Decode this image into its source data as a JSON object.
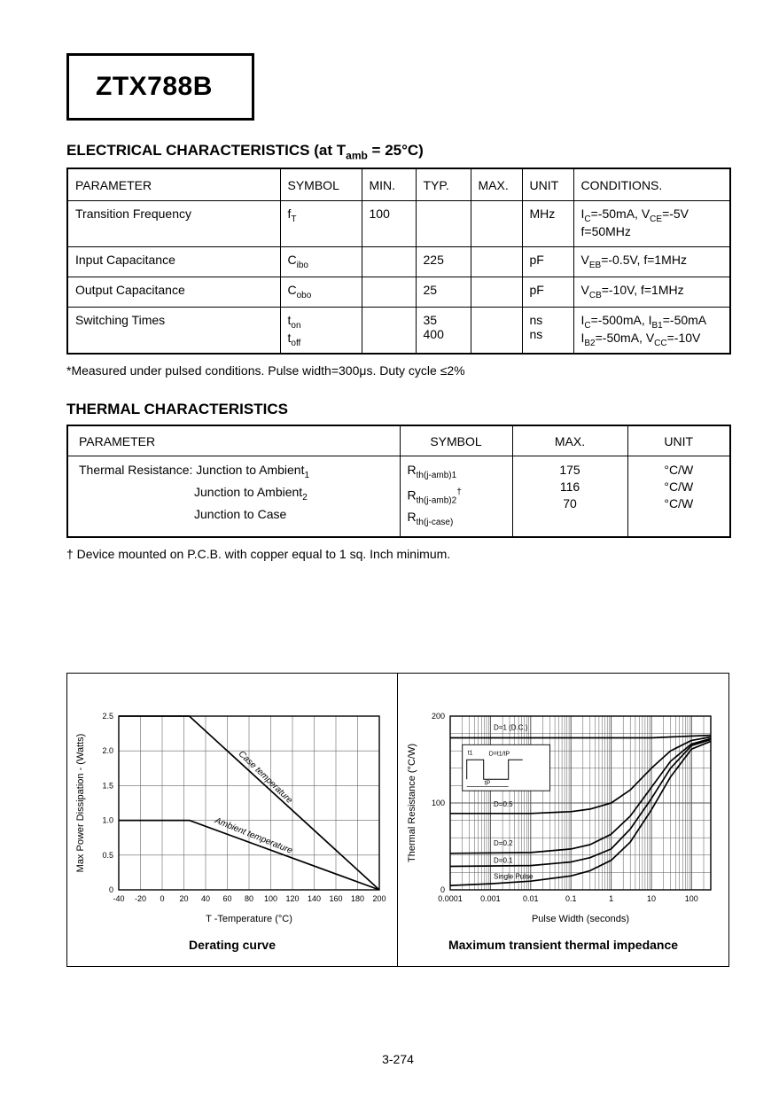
{
  "page": {
    "part_number": "ZTX788B",
    "page_number": "3-274"
  },
  "electrical": {
    "heading": "ELECTRICAL CHARACTERISTICS (at T~amb~ = 25°C)",
    "headers": [
      "PARAMETER",
      "SYMBOL",
      "MIN.",
      "TYP.",
      "MAX.",
      "UNIT",
      "CONDITIONS."
    ],
    "rows": [
      {
        "parameter": "Transition Frequency",
        "symbol": "f~T~",
        "min": "100",
        "typ": "",
        "max": "",
        "unit": "MHz",
        "conditions": "I~C~=-50mA, V~CE~=-5V\nf=50MHz"
      },
      {
        "parameter": "Input Capacitance",
        "symbol": "C~ibo~",
        "min": "",
        "typ": "225",
        "max": "",
        "unit": "pF",
        "conditions": "V~EB~=-0.5V, f=1MHz"
      },
      {
        "parameter": "Output Capacitance",
        "symbol": "C~obo~",
        "min": "",
        "typ": "25",
        "max": "",
        "unit": "pF",
        "conditions": "V~CB~=-10V,  f=1MHz"
      },
      {
        "parameter": "Switching Times",
        "symbol": "t~on~\nt~off~",
        "min": "",
        "typ": "35\n400",
        "max": "",
        "unit": "ns\nns",
        "conditions": "I~C~=-500mA, I~B1~=-50mA\nI~B2~=-50mA, V~CC~=-10V"
      }
    ],
    "footnote": "*Measured under pulsed conditions. Pulse width=300μs. Duty cycle ≤2%"
  },
  "thermal": {
    "heading": "THERMAL CHARACTERISTICS",
    "headers": [
      "PARAMETER",
      "SYMBOL",
      "MAX.",
      "UNIT"
    ],
    "row": {
      "parameter_lead": "Thermal Resistance:",
      "parameter_lines": [
        "Junction to Ambient~1~",
        "Junction to Ambient~2~",
        "Junction to Case"
      ],
      "symbol_lines": [
        "R~th(j-amb)1~",
        "R~th(j-amb)2~^†^",
        "R~th(j-case)~"
      ],
      "max_lines": [
        "175",
        "116",
        "70"
      ],
      "unit_lines": [
        "°C/W",
        "°C/W",
        "°C/W"
      ]
    },
    "footnote": "† Device mounted on P.C.B. with copper equal to 1 sq. Inch minimum."
  },
  "chart_data": [
    {
      "type": "line",
      "title": "Derating curve",
      "xlabel": "T -Temperature (°C)",
      "ylabel": "Max Power Dissipation -  (Watts)",
      "xscale": "linear",
      "xlim": [
        -40,
        200
      ],
      "ylim": [
        0,
        2.5
      ],
      "xticks": [
        -40,
        -20,
        0,
        20,
        40,
        60,
        80,
        100,
        120,
        140,
        160,
        180,
        200
      ],
      "xtick_labels": [
        "-40",
        "-20",
        "0",
        "20",
        "40",
        "60",
        "80",
        "100",
        "120",
        "140",
        "160",
        "180",
        "200"
      ],
      "yticks": [
        0,
        0.5,
        1,
        1.5,
        2,
        2.5
      ],
      "ytick_labels": [
        "0",
        "0.5",
        "1.0",
        "1.5",
        "2.0",
        "2.5"
      ],
      "grid": true,
      "series": [
        {
          "name": "Case temperature",
          "points": [
            [
              -40,
              2.5
            ],
            [
              25,
              2.5
            ],
            [
              200,
              0
            ]
          ],
          "label_at": [
            70,
            1.95
          ],
          "label_angle": 44,
          "label_italic": true,
          "label_size": 10
        },
        {
          "name": "Ambient temperature",
          "points": [
            [
              -40,
              1.0
            ],
            [
              25,
              1.0
            ],
            [
              200,
              0
            ]
          ],
          "label_at": [
            48,
            0.97
          ],
          "label_angle": 22,
          "label_italic": true,
          "label_size": 10
        }
      ]
    },
    {
      "type": "line",
      "title": "Maximum transient thermal impedance",
      "xlabel": "Pulse Width (seconds)",
      "ylabel": "Thermal Resistance (°C/W)",
      "xscale": "log",
      "xlim": [
        0.0001,
        300
      ],
      "ylim": [
        0,
        200
      ],
      "xticks": [
        0.0001,
        0.001,
        0.01,
        0.1,
        1,
        10,
        100
      ],
      "xtick_labels": [
        "0.0001",
        "0.001",
        "0.01",
        "0.1",
        "1",
        "10",
        "100"
      ],
      "yticks": [
        0,
        100,
        200
      ],
      "ytick_labels": [
        "0",
        "100",
        "200"
      ],
      "grid": true,
      "inset": {
        "labels": [
          "t1",
          "D=t1/tP",
          "tP"
        ]
      },
      "series": [
        {
          "name": "D=1 (D.C.)",
          "points": [
            [
              0.0001,
              175
            ],
            [
              10,
              175
            ],
            [
              100,
              177
            ],
            [
              300,
              178
            ]
          ],
          "label_at": [
            0.0012,
            184
          ],
          "label_size": 8
        },
        {
          "name": "D=0.5",
          "points": [
            [
              0.0001,
              88
            ],
            [
              0.01,
              88
            ],
            [
              0.1,
              90
            ],
            [
              0.3,
              93
            ],
            [
              1,
              100
            ],
            [
              3,
              115
            ],
            [
              10,
              140
            ],
            [
              30,
              160
            ],
            [
              100,
              172
            ],
            [
              300,
              176
            ]
          ],
          "label_at": [
            0.0012,
            96
          ],
          "label_size": 8
        },
        {
          "name": "D=0.2",
          "points": [
            [
              0.0001,
              42
            ],
            [
              0.01,
              43
            ],
            [
              0.1,
              47
            ],
            [
              0.3,
              52
            ],
            [
              1,
              64
            ],
            [
              3,
              85
            ],
            [
              10,
              118
            ],
            [
              30,
              148
            ],
            [
              100,
              168
            ],
            [
              300,
              174
            ]
          ],
          "label_at": [
            0.0012,
            51
          ],
          "label_size": 8
        },
        {
          "name": "D=0.1",
          "points": [
            [
              0.0001,
              27
            ],
            [
              0.01,
              28
            ],
            [
              0.1,
              32
            ],
            [
              0.3,
              37
            ],
            [
              1,
              47
            ],
            [
              3,
              70
            ],
            [
              10,
              105
            ],
            [
              30,
              140
            ],
            [
              100,
              166
            ],
            [
              300,
              173
            ]
          ],
          "label_at": [
            0.0012,
            31
          ],
          "label_size": 8
        },
        {
          "name": "Single Pulse",
          "points": [
            [
              0.0001,
              5
            ],
            [
              0.001,
              7
            ],
            [
              0.01,
              10
            ],
            [
              0.1,
              16
            ],
            [
              0.3,
              22
            ],
            [
              1,
              34
            ],
            [
              3,
              55
            ],
            [
              10,
              92
            ],
            [
              30,
              130
            ],
            [
              100,
              162
            ],
            [
              300,
              171
            ]
          ],
          "label_at": [
            0.0012,
            13
          ],
          "label_size": 8
        }
      ]
    }
  ]
}
